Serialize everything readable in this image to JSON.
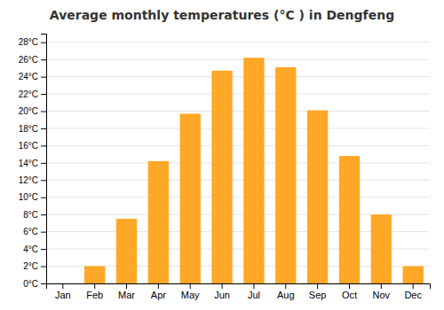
{
  "chart_data": {
    "type": "bar",
    "title": "Average monthly temperatures (°C ) in Dengfeng",
    "categories": [
      "Jan",
      "Feb",
      "Mar",
      "Apr",
      "May",
      "Jun",
      "Jul",
      "Aug",
      "Sep",
      "Oct",
      "Nov",
      "Dec"
    ],
    "values": [
      0,
      2,
      7.5,
      14.2,
      19.7,
      24.7,
      26.2,
      25.1,
      20.1,
      14.8,
      8.0,
      2.0
    ],
    "color": "#FFA726",
    "ylim": [
      0,
      29
    ],
    "yticks": [
      {
        "value": 0,
        "label": "0°C"
      },
      {
        "value": 2,
        "label": "2°C"
      },
      {
        "value": 4,
        "label": "4°C"
      },
      {
        "value": 6,
        "label": "6°C"
      },
      {
        "value": 8,
        "label": "8°C"
      },
      {
        "value": 10,
        "label": "10°C"
      },
      {
        "value": 12,
        "label": "12°C"
      },
      {
        "value": 14,
        "label": "14°C"
      },
      {
        "value": 16,
        "label": "16°C"
      },
      {
        "value": 18,
        "label": "18°C"
      },
      {
        "value": 20,
        "label": "20°C"
      },
      {
        "value": 22,
        "label": "22°C"
      },
      {
        "value": 24,
        "label": "24°C"
      },
      {
        "value": 26,
        "label": "26°C"
      },
      {
        "value": 28,
        "label": "28°C"
      }
    ],
    "grid": true
  }
}
